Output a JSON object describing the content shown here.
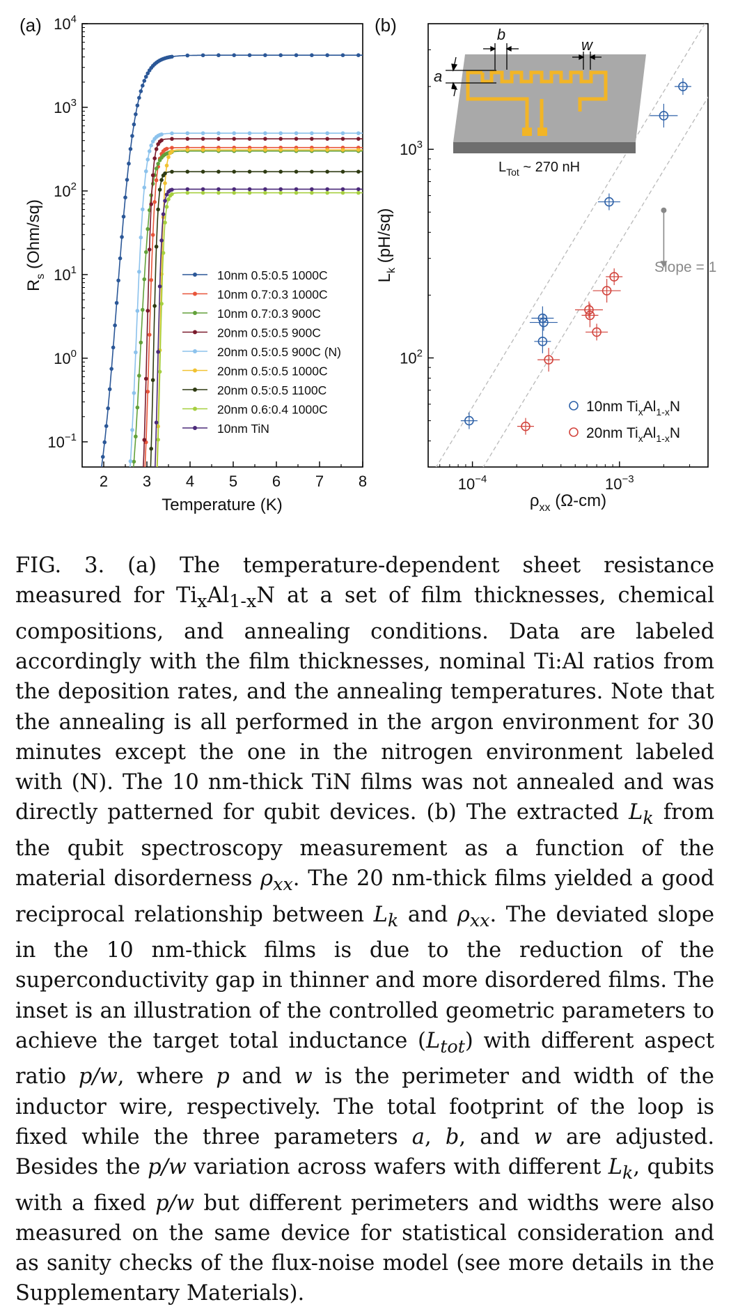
{
  "figure": {
    "panel_a_label": "(a)",
    "panel_b_label": "(b)",
    "inset": {
      "label_a": "a",
      "label_b": "b",
      "label_w": "w",
      "ltot_prefix": "L",
      "ltot_sub": "Tot",
      "ltot_suffix": " ~ 270 nH"
    },
    "colors": {
      "blue10": "#2f62a8",
      "red20": "#d2443d",
      "guide": "#b9b9b9",
      "slope_marker": "#888888"
    }
  },
  "chart_data": [
    {
      "panel": "a",
      "type": "line",
      "xlabel": "Temperature (K)",
      "ylabel_main": "R",
      "ylabel_sub": "s",
      "ylabel_rest": " (Ohm/sq)",
      "xlim": [
        1.5,
        8
      ],
      "ylim": [
        0.05,
        10000
      ],
      "yscale": "log",
      "xticks": [
        "2",
        "3",
        "4",
        "5",
        "6",
        "7",
        "8"
      ],
      "yticks": [
        {
          "base": "10",
          "exp": "−1"
        },
        {
          "base": "10",
          "exp": "0"
        },
        {
          "base": "10",
          "exp": "1"
        },
        {
          "base": "10",
          "exp": "2"
        },
        {
          "base": "10",
          "exp": "3"
        },
        {
          "base": "10",
          "exp": "4"
        }
      ],
      "legend_position": "center-right",
      "series": [
        {
          "name": "10nm 0.5:0.5 1000C",
          "color": "#2b5797",
          "tc": 2.3,
          "width": 0.22,
          "rn": 4200
        },
        {
          "name": "10nm 0.7:0.3 1000C",
          "color": "#e8553a",
          "tc": 3.05,
          "width": 0.07,
          "rn": 330
        },
        {
          "name": "10nm 0.7:0.3 900C",
          "color": "#62a13a",
          "tc": 2.85,
          "width": 0.12,
          "rn": 300
        },
        {
          "name": "20nm 0.5:0.5 900C",
          "color": "#7a1a2c",
          "tc": 3.0,
          "width": 0.06,
          "rn": 420
        },
        {
          "name": "20nm 0.5:0.5 900C (N)",
          "color": "#8cc2ec",
          "tc": 2.75,
          "width": 0.1,
          "rn": 490
        },
        {
          "name": "20nm 0.5:0.5 1000C",
          "color": "#f1c232",
          "tc": 3.3,
          "width": 0.05,
          "rn": 310
        },
        {
          "name": "20nm 0.5:0.5 1100C",
          "color": "#2e3a12",
          "tc": 3.15,
          "width": 0.05,
          "rn": 170
        },
        {
          "name": "20nm 0.6:0.4 1000C",
          "color": "#a6cf3f",
          "tc": 3.3,
          "width": 0.05,
          "rn": 95
        },
        {
          "name": "10nm TiN",
          "color": "#4b2a7a",
          "tc": 3.25,
          "width": 0.05,
          "rn": 105
        }
      ]
    },
    {
      "panel": "b",
      "type": "scatter",
      "xlabel_main": "ρ",
      "xlabel_sub": "xx",
      "xlabel_rest": " (Ω-cm)",
      "ylabel_main": "L",
      "ylabel_sub": "k",
      "ylabel_rest": " (pH/sq)",
      "xscale": "log",
      "yscale": "log",
      "xlim": [
        5e-05,
        0.004
      ],
      "ylim": [
        30,
        4000
      ],
      "xticks": [
        {
          "base": "10",
          "exp": "−4"
        },
        {
          "base": "10",
          "exp": "−3"
        }
      ],
      "yticks": [
        {
          "base": "10",
          "exp": "2"
        },
        {
          "base": "10",
          "exp": "3"
        }
      ],
      "annotation": "Slope = 1",
      "legend_position": "bottom-right",
      "series": [
        {
          "name_prefix": "10nm Ti",
          "name_sub1": "x",
          "name_mid": "Al",
          "name_sub2": "1-x",
          "name_suffix": "N",
          "points": [
            {
              "x": 9.5e-05,
              "y": 50
            },
            {
              "x": 0.0003,
              "y": 155
            },
            {
              "x": 0.000305,
              "y": 148
            },
            {
              "x": 0.0003,
              "y": 120
            },
            {
              "x": 0.00085,
              "y": 560
            },
            {
              "x": 0.002,
              "y": 1450
            },
            {
              "x": 0.0027,
              "y": 2000
            }
          ]
        },
        {
          "name_prefix": "20nm Ti",
          "name_sub1": "x",
          "name_mid": "Al",
          "name_sub2": "1-x",
          "name_suffix": "N",
          "points": [
            {
              "x": 0.00023,
              "y": 47
            },
            {
              "x": 0.00033,
              "y": 98
            },
            {
              "x": 0.00062,
              "y": 170
            },
            {
              "x": 0.00063,
              "y": 160
            },
            {
              "x": 0.0007,
              "y": 133
            },
            {
              "x": 0.00082,
              "y": 210
            },
            {
              "x": 0.00092,
              "y": 245
            }
          ]
        }
      ],
      "guides": [
        {
          "x1": 4e-05,
          "y1": 20,
          "x2": 0.005,
          "y2": 5500
        },
        {
          "x1": 4e-05,
          "y1": 8.5,
          "x2": 0.005,
          "y2": 2300
        }
      ],
      "slope_marker": {
        "x": 0.002,
        "y1": 510,
        "y2": 270
      }
    }
  ],
  "caption": {
    "fig": "FIG. 3.",
    "p1": " (a) The temperature-dependent sheet resistance measured for Ti",
    "sub_x": "x",
    "al": "Al",
    "sub_1x": "1-x",
    "p2": "N at a set of film thicknesses, chemical compositions, and annealing conditions. Data are labeled accordingly with the film thicknesses, nominal Ti:Al ratios from the deposition rates, and the annealing temperatures. Note that the annealing is all performed in the argon environment for 30 minutes except the one in the nitrogen environment labeled with (N). The 10 nm-thick TiN films was not annealed and was directly patterned for qubit devices. (b) The extracted ",
    "lk1": "L",
    "k1": "k",
    "p3": " from the qubit spectroscopy measurement as a function of the material disorderness ",
    "rho1": "ρ",
    "xx1": "xx",
    "p4": ". The 20 nm-thick films yielded a good reciprocal relationship between ",
    "lk2": "L",
    "k2": "k",
    "p5": " and ",
    "rho2": "ρ",
    "xx2": "xx",
    "p6": ". The deviated slope in the 10 nm-thick films is due to the reduction of the superconductivity gap in thinner and more disordered films. The inset is an illustration of the controlled geometric parameters to achieve the target total inductance (",
    "ltot": "L",
    "tot": "tot",
    "p7": ") with different aspect ratio ",
    "pw1": "p/w",
    "p8": ", where ",
    "pvar": "p",
    "p9": " and ",
    "wvar": "w",
    "p10": " is the perimeter and width of the inductor wire, respectively. The total footprint of the loop is fixed while the three parameters ",
    "avar": "a",
    "p11": ", ",
    "bvar": "b",
    "p12": ", and ",
    "wvar2": "w",
    "p13": " are adjusted. Besides the ",
    "pw2": "p/w",
    "p14": " variation across wafers with different ",
    "lk3": "L",
    "k3": "k",
    "p15": ", qubits with a fixed ",
    "pw3": "p/w",
    "p16": " but different perimeters and widths were also measured on the same device for statistical consideration and as sanity checks of the flux-noise model (see more details in the Supplementary Materials)."
  }
}
